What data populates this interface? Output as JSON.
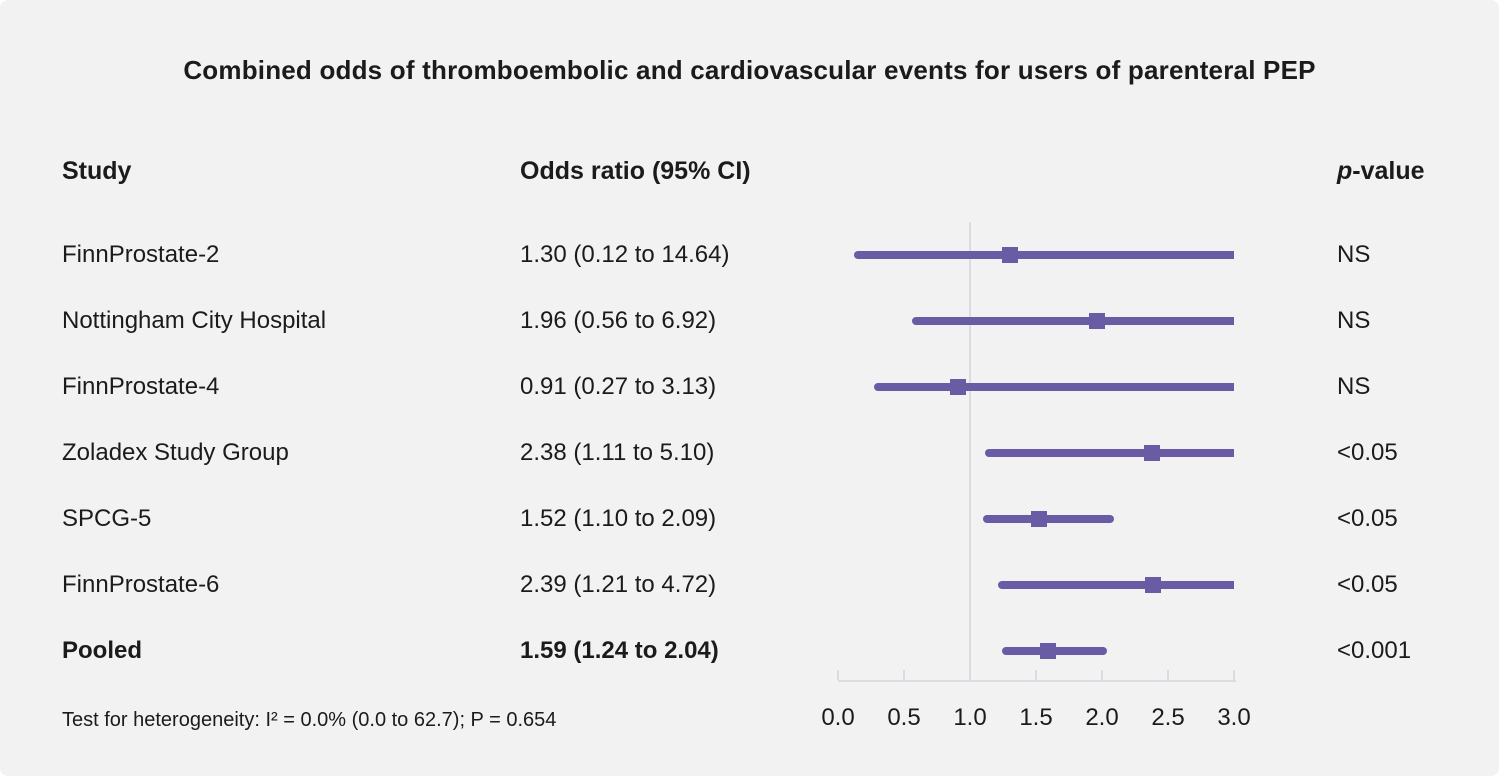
{
  "title": "Combined odds of thromboembolic and cardiovascular events for users of parenteral PEP",
  "columns": {
    "study": "Study",
    "odds_ratio": "Odds ratio (95% CI)",
    "p_italic": "p",
    "p_rest": "-value"
  },
  "footnote": "Test for heterogeneity: I² = 0.0% (0.0 to 62.7); P = 0.654",
  "colors": {
    "background": "#f2f2f2",
    "accent_purple": "#6a5ba5",
    "axis_gray": "#d9dde2",
    "text": "#1b1b1b"
  },
  "chart_data": {
    "type": "forest",
    "title": "Combined odds of thromboembolic and cardiovascular events for users of parenteral PEP",
    "xlabel": "",
    "x_ticks": [
      "0.0",
      "0.5",
      "1.0",
      "1.5",
      "2.0",
      "2.5",
      "3.0"
    ],
    "x_range": [
      0.0,
      3.0
    ],
    "reference_line_x": 1.0,
    "legend": "none",
    "rows": [
      {
        "study": "FinnProstate-2",
        "odds_ratio": 1.3,
        "ci_low": 0.12,
        "ci_high": 14.64,
        "or_label": "1.30 (0.12 to 14.64)",
        "p_value": "NS",
        "bold": false
      },
      {
        "study": "Nottingham City Hospital",
        "odds_ratio": 1.96,
        "ci_low": 0.56,
        "ci_high": 6.92,
        "or_label": "1.96 (0.56 to 6.92)",
        "p_value": "NS",
        "bold": false
      },
      {
        "study": "FinnProstate-4",
        "odds_ratio": 0.91,
        "ci_low": 0.27,
        "ci_high": 3.13,
        "or_label": "0.91 (0.27 to 3.13)",
        "p_value": "NS",
        "bold": false
      },
      {
        "study": "Zoladex Study Group",
        "odds_ratio": 2.38,
        "ci_low": 1.11,
        "ci_high": 5.1,
        "or_label": "2.38 (1.11 to 5.10)",
        "p_value": "<0.05",
        "bold": false
      },
      {
        "study": "SPCG-5",
        "odds_ratio": 1.52,
        "ci_low": 1.1,
        "ci_high": 2.09,
        "or_label": "1.52 (1.10 to 2.09)",
        "p_value": "<0.05",
        "bold": false
      },
      {
        "study": "FinnProstate-6",
        "odds_ratio": 2.39,
        "ci_low": 1.21,
        "ci_high": 4.72,
        "or_label": "2.39 (1.21 to 4.72)",
        "p_value": "<0.05",
        "bold": false
      },
      {
        "study": "Pooled",
        "odds_ratio": 1.59,
        "ci_low": 1.24,
        "ci_high": 2.04,
        "or_label": "1.59 (1.24 to 2.04)",
        "p_value": "<0.001",
        "bold": true
      }
    ],
    "heterogeneity_note": "Test for heterogeneity: I² = 0.0% (0.0 to 62.7); P = 0.654"
  }
}
